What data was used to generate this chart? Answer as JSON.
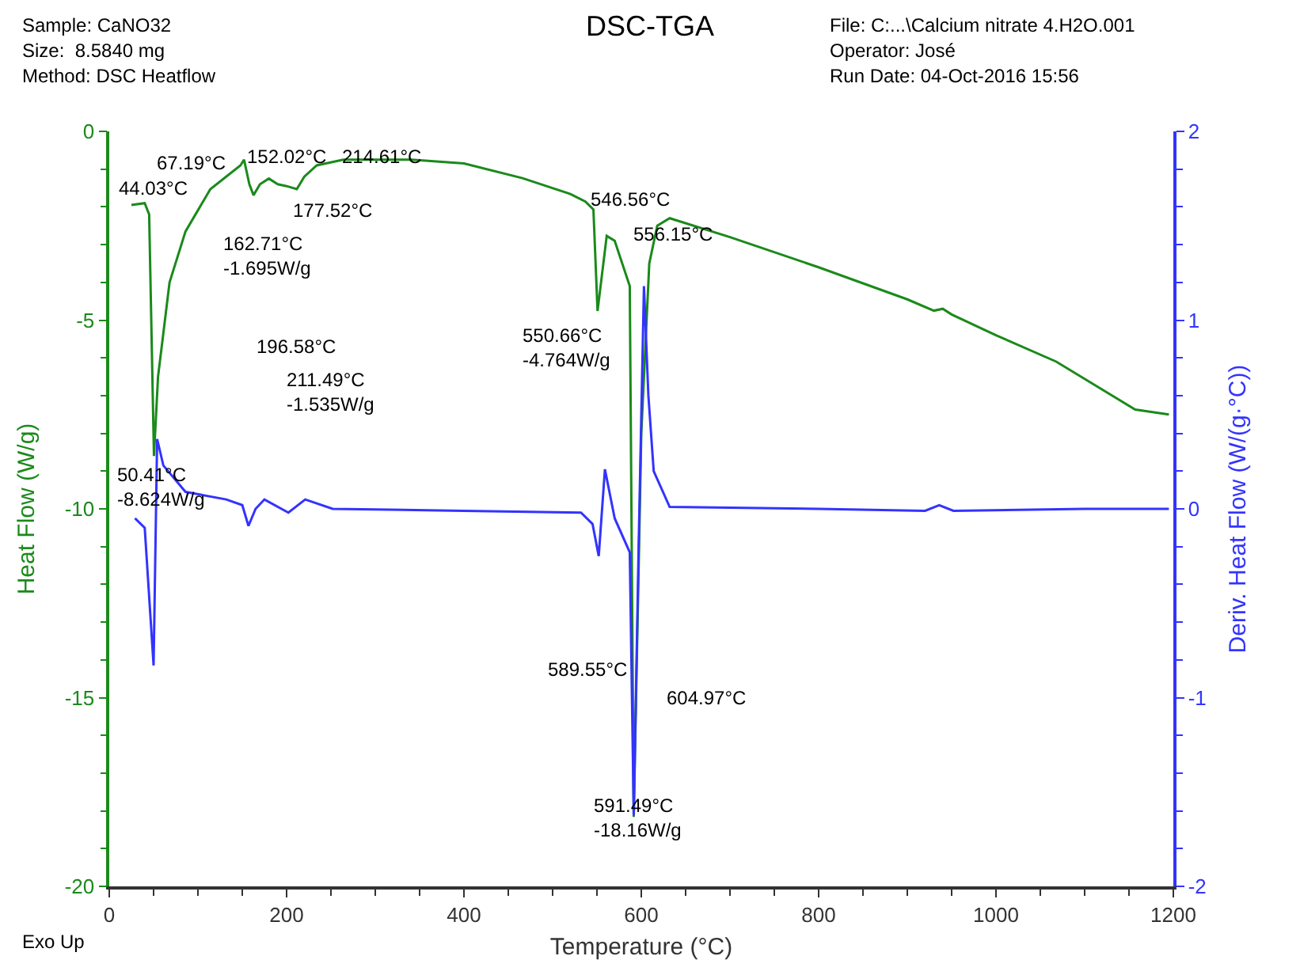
{
  "chart_data": {
    "type": "line",
    "title": "DSC-TGA",
    "xlabel": "Temperature (°C)",
    "ylabel": "Heat Flow (W/g)",
    "y2label": "Deriv. Heat Flow (W/(g·°C))",
    "xlim": [
      0,
      1200
    ],
    "xticks": [
      0,
      200,
      400,
      600,
      800,
      1000,
      1200
    ],
    "ylim": [
      -20,
      0
    ],
    "yticks": [
      -20,
      -15,
      -10,
      -5,
      0
    ],
    "y2lim": [
      -2,
      2
    ],
    "y2ticks": [
      -2,
      -1,
      0,
      1,
      2
    ],
    "marker": "none",
    "line_style": "solid",
    "series": [
      {
        "color": "#1a8a1a",
        "x": [
          25,
          40,
          45,
          50.41,
          55,
          68,
          86,
          114,
          148,
          152,
          158,
          162.71,
          170,
          180,
          190,
          200,
          211.49,
          220,
          234,
          264,
          341,
          400,
          466,
          520,
          537,
          546,
          550.66,
          561,
          570,
          587,
          591.49,
          600,
          609,
          618,
          632,
          700,
          800,
          900,
          930,
          940,
          950,
          1000,
          1068,
          1157,
          1195
        ],
        "values": [
          -1.95,
          -1.9,
          -2.2,
          -8.6,
          -6.5,
          -4.0,
          -2.65,
          -1.53,
          -0.9,
          -0.75,
          -1.4,
          -1.69,
          -1.4,
          -1.25,
          -1.4,
          -1.45,
          -1.53,
          -1.2,
          -0.9,
          -0.75,
          -0.75,
          -0.85,
          -1.24,
          -1.66,
          -1.86,
          -2.07,
          -4.76,
          -2.77,
          -2.9,
          -4.1,
          -18.16,
          -8.0,
          -3.5,
          -2.5,
          -2.3,
          -2.8,
          -3.6,
          -4.45,
          -4.75,
          -4.7,
          -4.85,
          -5.4,
          -6.1,
          -7.37,
          -7.5
        ]
      },
      {
        "color": "#3333ff",
        "axis": "y2",
        "x": [
          29,
          40,
          50,
          54,
          61,
          86,
          132,
          150,
          157,
          165,
          175,
          202,
          221,
          252,
          400,
          532,
          545,
          552,
          559,
          570,
          587,
          591.49,
          597,
          603,
          608,
          614,
          632,
          800,
          920,
          936,
          952,
          1100,
          1195
        ],
        "values": [
          -0.05,
          -0.1,
          -0.83,
          0.37,
          0.23,
          0.09,
          0.05,
          0.02,
          -0.09,
          0.0,
          0.05,
          -0.02,
          0.05,
          0.0,
          -0.01,
          -0.02,
          -0.08,
          -0.25,
          0.21,
          -0.05,
          -0.23,
          -1.62,
          -0.2,
          1.18,
          0.6,
          0.2,
          0.01,
          0.0,
          -0.01,
          0.02,
          -0.01,
          0.0,
          0.0
        ]
      }
    ],
    "annotations": [
      "Sample: CaNO32",
      "Size:  8.5840 mg",
      "Method: DSC Heatflow",
      "File: C:...\\Calcium nitrate 4.H2O.001",
      "Operator: José",
      "Run Date: 04-Oct-2016 15:56",
      "Exo Up",
      "44.03°C",
      "67.19°C",
      "152.02°C",
      "177.52°C",
      "162.71°C\n-1.695W/g",
      "196.58°C",
      "211.49°C\n-1.535W/g",
      "214.61°C",
      "546.56°C",
      "556.15°C",
      "589.55°C",
      "604.97°C",
      {
        "text": "50.41°C\n-8.624W/g",
        "x": 50.41,
        "y": -8.624
      },
      {
        "text": "550.66°C\n-4.764W/g",
        "x": 550.66,
        "y": -4.764
      },
      {
        "text": "591.49°C\n-18.16W/g",
        "x": 591.49,
        "y": -18.16
      }
    ]
  }
}
